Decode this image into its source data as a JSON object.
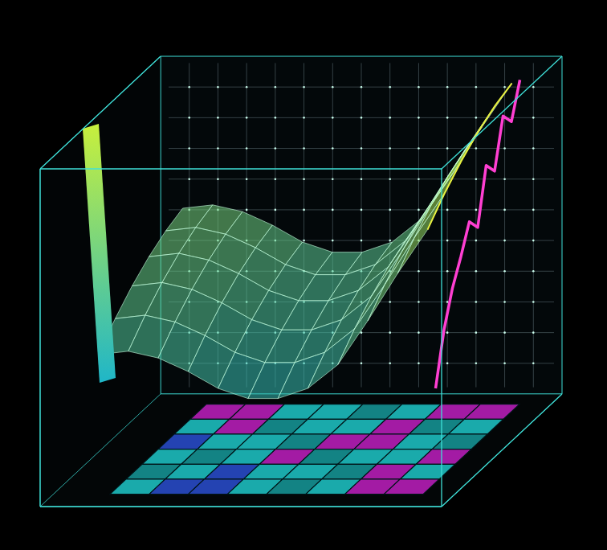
{
  "chart_data": {
    "type": "surface",
    "x": [
      0,
      1,
      2,
      3,
      4,
      5,
      6,
      7,
      8,
      9,
      10,
      11
    ],
    "y": [
      0,
      1,
      2,
      3,
      4,
      5
    ],
    "z": [
      [
        40,
        41,
        39,
        35,
        30,
        27,
        27,
        30,
        37,
        50,
        64,
        77
      ],
      [
        46,
        47,
        45,
        41,
        36,
        33,
        33,
        36,
        43,
        56,
        70,
        83
      ],
      [
        51,
        52,
        50,
        46,
        41,
        38,
        38,
        41,
        48,
        61,
        75,
        88
      ],
      [
        55,
        56,
        54,
        50,
        45,
        42,
        42,
        45,
        52,
        65,
        79,
        92
      ],
      [
        58,
        59,
        57,
        53,
        48,
        45,
        45,
        48,
        55,
        68,
        82,
        95
      ],
      [
        60,
        61,
        59,
        55,
        50,
        47,
        47,
        50,
        57,
        70,
        84,
        97
      ]
    ],
    "zlim": [
      0,
      100
    ],
    "colorscale": [
      "#1fb6c8",
      "#c8f03c"
    ],
    "edge_line": {
      "color": "#ff3fd2",
      "y": [
        0,
        0.5,
        1,
        1.5,
        2,
        2.5,
        3,
        3.5,
        4,
        4.5,
        5
      ],
      "values": [
        30,
        45,
        55,
        62,
        70,
        66,
        82,
        78,
        92,
        88,
        98
      ]
    },
    "floor": {
      "cells": [
        [
          0,
          1,
          1,
          0,
          3,
          0,
          2,
          2
        ],
        [
          3,
          0,
          1,
          0,
          0,
          3,
          2,
          0
        ],
        [
          0,
          3,
          0,
          2,
          3,
          0,
          0,
          2
        ],
        [
          1,
          0,
          0,
          3,
          2,
          2,
          0,
          3
        ],
        [
          0,
          2,
          3,
          0,
          0,
          2,
          3,
          0
        ],
        [
          2,
          2,
          0,
          0,
          3,
          0,
          2,
          2
        ]
      ],
      "colors": [
        "#1ec8c8",
        "#2a4fd0",
        "#c020c0",
        "#169a9a"
      ]
    },
    "grid": true,
    "tick_labels": false
  }
}
